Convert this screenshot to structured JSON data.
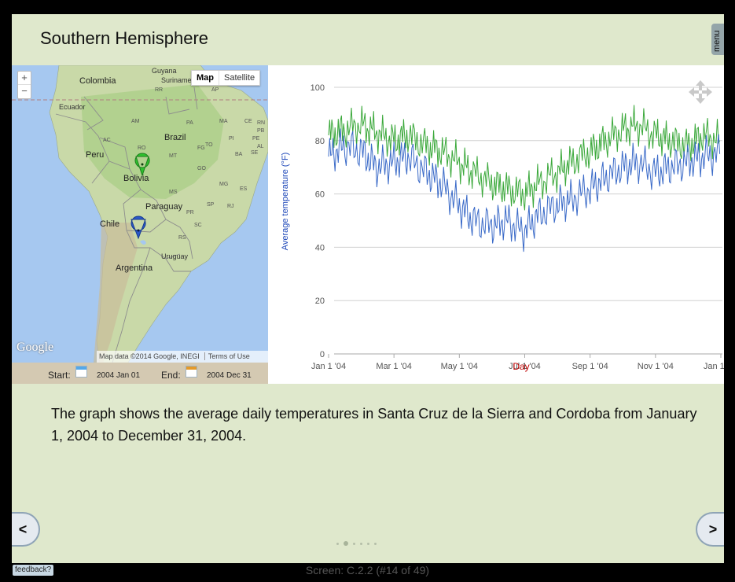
{
  "header": {
    "title": "Southern Hemisphere",
    "menu_label": "menu"
  },
  "map": {
    "zoom_in": "+",
    "zoom_out": "−",
    "type_map": "Map",
    "type_satellite": "Satellite",
    "logo": "Google",
    "attribution": "Map data ©2014 Google, INEGI",
    "terms": "Terms of Use",
    "labels": {
      "guyana": "Guyana",
      "suriname": "Suriname",
      "colombia": "Colombia",
      "ecuador": "Ecuador",
      "peru": "Peru",
      "brazil": "Brazil",
      "bolivia": "Bolivia",
      "chile": "Chile",
      "paraguay": "Paraguay",
      "argentina": "Argentina",
      "uruguay": "Uruguay",
      "am": "AM",
      "pa": "PA",
      "ma": "MA",
      "ce": "CE",
      "rn": "RN",
      "pb": "PB",
      "pe": "PE",
      "ac": "AC",
      "ro": "RO",
      "to": "TO",
      "pi": "PI",
      "mt": "MT",
      "ba": "BA",
      "se": "SE",
      "go": "GO",
      "ms": "MS",
      "mg": "MG",
      "es": "ES",
      "sp": "SP",
      "rj": "RJ",
      "pr": "PR",
      "sc": "SC",
      "rs": "RS",
      "al": "AL",
      "fg": "FG",
      "ap": "AP",
      "rr": "RR"
    },
    "markers": [
      {
        "name": "green-marker",
        "color": "#2ec12e"
      },
      {
        "name": "blue-marker",
        "color": "#2b58c8"
      }
    ]
  },
  "dates": {
    "start_label": "Start:",
    "start_value": "2004 Jan 01",
    "end_label": "End:",
    "end_value": "2004 Dec 31"
  },
  "chart_data": {
    "type": "line",
    "title": "",
    "xlabel": "Day",
    "ylabel": "Average temperature (°F)",
    "ylim": [
      0,
      100
    ],
    "yticks": [
      0,
      20,
      40,
      60,
      80,
      100
    ],
    "xticks": [
      "Jan 1 '04",
      "Mar 1 '04",
      "May 1 '04",
      "Jul 1 '04",
      "Sep 1 '04",
      "Nov 1 '04",
      "Jan 1 '05"
    ],
    "grid": true,
    "series": [
      {
        "color": "#3aa83a",
        "x": [
          "Jan 1 '04",
          "Jan 15 '04",
          "Feb 1 '04",
          "Feb 15 '04",
          "Mar 1 '04",
          "Mar 15 '04",
          "Apr 1 '04",
          "Apr 15 '04",
          "May 1 '04",
          "May 15 '04",
          "Jun 1 '04",
          "Jun 15 '04",
          "Jul 1 '04",
          "Jul 15 '04",
          "Aug 1 '04",
          "Aug 15 '04",
          "Sep 1 '04",
          "Sep 15 '04",
          "Oct 1 '04",
          "Oct 15 '04",
          "Nov 1 '04",
          "Nov 15 '04",
          "Dec 1 '04",
          "Dec 15 '04",
          "Dec 31 '04"
        ],
        "values": [
          82,
          84,
          86,
          83,
          80,
          82,
          78,
          76,
          72,
          68,
          64,
          62,
          60,
          64,
          68,
          72,
          76,
          80,
          84,
          86,
          82,
          80,
          78,
          82,
          80
        ]
      },
      {
        "color": "#3a6ac8",
        "x": [
          "Jan 1 '04",
          "Jan 15 '04",
          "Feb 1 '04",
          "Feb 15 '04",
          "Mar 1 '04",
          "Mar 15 '04",
          "Apr 1 '04",
          "Apr 15 '04",
          "May 1 '04",
          "May 15 '04",
          "Jun 1 '04",
          "Jun 15 '04",
          "Jul 1 '04",
          "Jul 15 '04",
          "Aug 1 '04",
          "Aug 15 '04",
          "Sep 1 '04",
          "Sep 15 '04",
          "Oct 1 '04",
          "Oct 15 '04",
          "Nov 1 '04",
          "Nov 15 '04",
          "Dec 1 '04",
          "Dec 15 '04",
          "Dec 31 '04"
        ],
        "values": [
          74,
          78,
          76,
          70,
          72,
          74,
          68,
          64,
          56,
          50,
          48,
          50,
          46,
          52,
          56,
          58,
          62,
          66,
          70,
          72,
          68,
          70,
          72,
          74,
          75
        ]
      }
    ]
  },
  "caption": "The graph shows the average daily temperatures in Santa Cruz de la Sierra and Cordoba from January 1, 2004 to December 31, 2004.",
  "nav": {
    "prev": "<",
    "next": ">",
    "dot_count": 6,
    "active_dot": 1
  },
  "footer": {
    "feedback": "feedback?",
    "screen": "Screen: C.2.2 (#14 of 49)"
  }
}
